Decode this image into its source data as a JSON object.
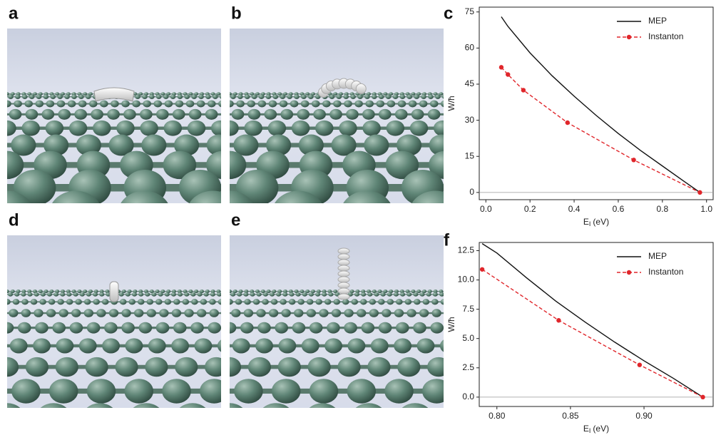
{
  "panels": [
    {
      "label": "a"
    },
    {
      "label": "b"
    },
    {
      "label": "d"
    },
    {
      "label": "e"
    }
  ],
  "chart_data": [
    {
      "type": "line",
      "panel_label": "c",
      "xlabel": {
        "text": "E",
        "subscript": "I",
        "unit": "(eV)"
      },
      "ylabel": "W/ħ",
      "xlim": [
        -0.03,
        1.03
      ],
      "ylim": [
        -3,
        77
      ],
      "xticks": [
        {
          "value": 0,
          "label": "0.0"
        },
        0.2,
        0.4,
        0.6,
        0.8,
        {
          "value": 1,
          "label": "1.0"
        }
      ],
      "yticks": [
        0,
        15,
        30,
        45,
        60,
        75
      ],
      "zero_line": true,
      "legend": "upper right",
      "series": [
        {
          "name": "MEP",
          "color": "#111111",
          "linestyle": "solid",
          "marker": "none",
          "x": [
            0.07,
            0.1,
            0.2,
            0.3,
            0.4,
            0.5,
            0.6,
            0.7,
            0.8,
            0.9,
            0.97
          ],
          "values": [
            73,
            69,
            58,
            48.5,
            40,
            32,
            24.5,
            17.5,
            11,
            4.5,
            0
          ]
        },
        {
          "name": "Instanton",
          "color": "#e0262b",
          "linestyle": "dashed",
          "marker": "o",
          "x": [
            0.07,
            0.1,
            0.17,
            0.37,
            0.67,
            0.97
          ],
          "values": [
            52,
            49,
            42.5,
            29,
            13.5,
            0
          ]
        }
      ]
    },
    {
      "type": "line",
      "panel_label": "f",
      "xlabel": {
        "text": "E",
        "subscript": "I",
        "unit": "(eV)"
      },
      "ylabel": "W/ħ",
      "xlim": [
        0.788,
        0.947
      ],
      "ylim": [
        -0.8,
        13.2
      ],
      "xticks": [
        {
          "value": 0.8,
          "label": "0.80"
        },
        0.85,
        {
          "value": 0.9,
          "label": "0.90"
        }
      ],
      "yticks": [
        {
          "value": 0,
          "label": "0.0"
        },
        2.5,
        {
          "value": 5,
          "label": "5.0"
        },
        7.5,
        {
          "value": 10,
          "label": "10.0"
        },
        12.5
      ],
      "zero_line": true,
      "legend": "upper right",
      "series": [
        {
          "name": "MEP",
          "color": "#111111",
          "linestyle": "solid",
          "marker": "none",
          "x": [
            0.79,
            0.8,
            0.82,
            0.84,
            0.86,
            0.88,
            0.9,
            0.92,
            0.94
          ],
          "values": [
            13.1,
            12.3,
            10.2,
            8.2,
            6.4,
            4.7,
            3.1,
            1.6,
            0
          ]
        },
        {
          "name": "Instanton",
          "color": "#e0262b",
          "linestyle": "dashed",
          "marker": "o",
          "x": [
            0.79,
            0.842,
            0.897,
            0.94
          ],
          "values": [
            10.9,
            6.55,
            2.75,
            0
          ]
        }
      ]
    }
  ]
}
